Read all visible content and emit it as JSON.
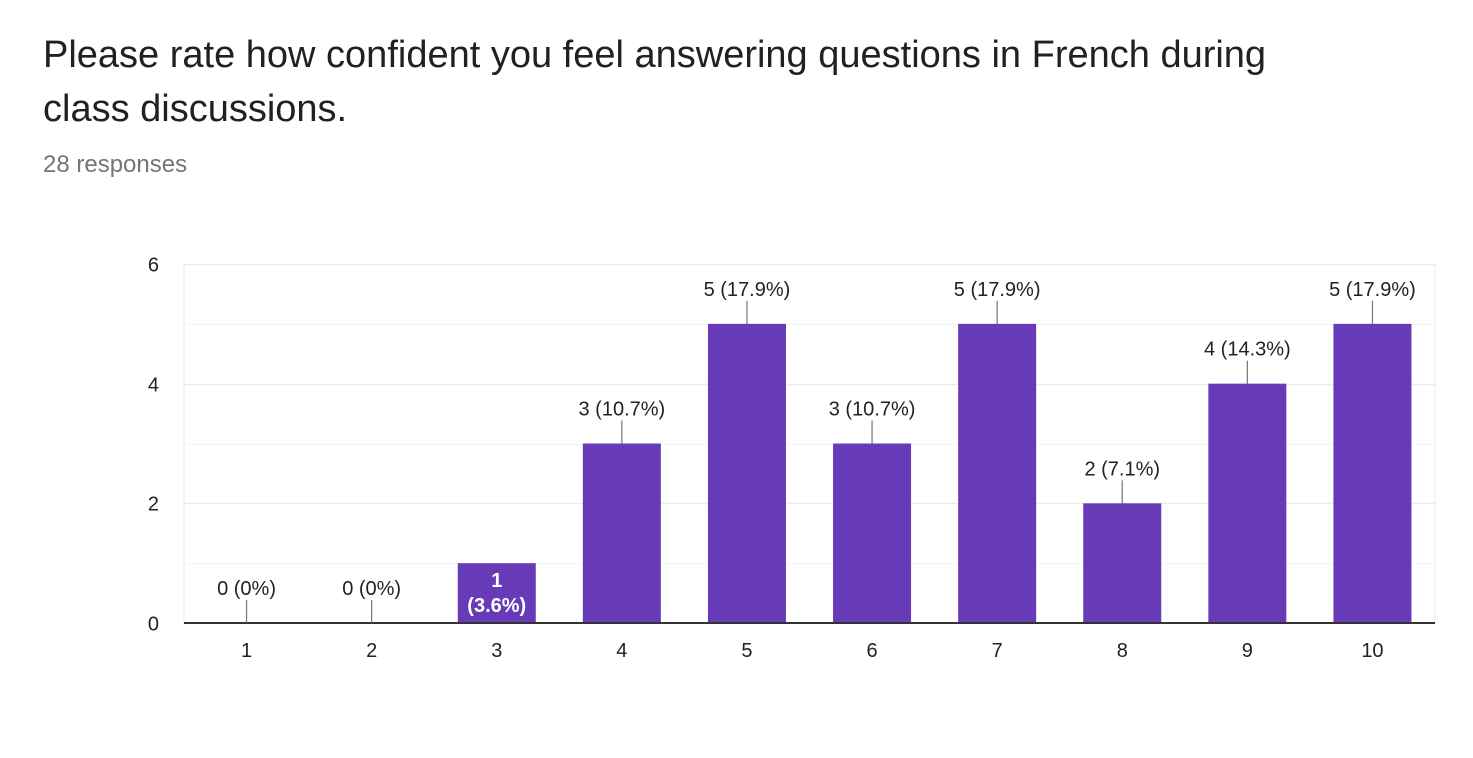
{
  "question": {
    "title": "Please rate how confident you feel answering questions in French during class discussions.",
    "responses_label": "28 responses"
  },
  "colors": {
    "bar": "#673ab7",
    "gridline": "#ebebeb",
    "axis": "#333333",
    "leader": "#757575"
  },
  "chart_data": {
    "type": "bar",
    "categories": [
      "1",
      "2",
      "3",
      "4",
      "5",
      "6",
      "7",
      "8",
      "9",
      "10"
    ],
    "values": [
      0,
      0,
      1,
      3,
      5,
      3,
      5,
      2,
      4,
      5
    ],
    "data_labels": [
      "0 (0%)",
      "0 (0%)",
      "1 (3.6%)",
      "3 (10.7%)",
      "5 (17.9%)",
      "3 (10.7%)",
      "5 (17.9%)",
      "2 (7.1%)",
      "4 (14.3%)",
      "5 (17.9%)"
    ],
    "ylim": [
      0,
      6
    ],
    "yticks": [
      0,
      2,
      4,
      6
    ],
    "minor_gridlines": [
      1,
      3,
      5
    ],
    "grid": true,
    "legend": "none"
  }
}
